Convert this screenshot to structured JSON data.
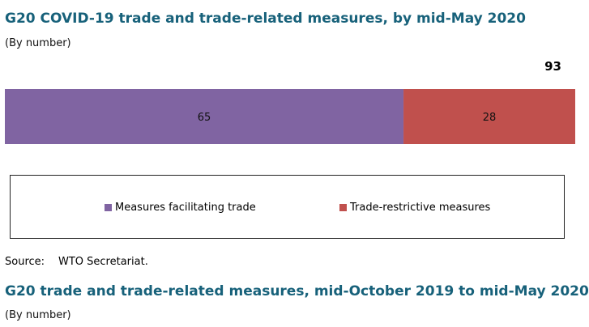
{
  "chart_data": {
    "type": "bar",
    "orientation": "horizontal",
    "stacked": true,
    "title": "G20 COVID-19 trade and trade-related measures, by mid-May 2020",
    "subtitle": "(By number)",
    "total": "93",
    "series": [
      {
        "name": "Measures facilitating trade",
        "values": [
          65
        ],
        "color": "#8064a2"
      },
      {
        "name": "Trade-restrictive measures",
        "values": [
          28
        ],
        "color": "#c0504d"
      }
    ],
    "legend_position": "bottom",
    "grid": false
  },
  "source": {
    "label": "Source:",
    "text": "WTO Secretariat."
  },
  "next_section": {
    "title": "G20 trade and trade-related measures, mid-October 2019 to mid-May 2020",
    "subtitle": "(By number)"
  }
}
